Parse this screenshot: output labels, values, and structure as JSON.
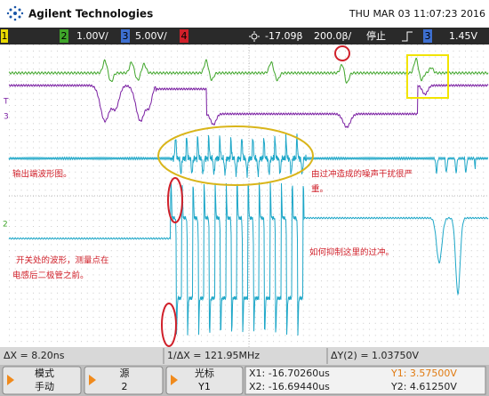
{
  "header": {
    "brand": "Agilent Technologies",
    "datetime": "THU MAR 03 11:07:23 2016"
  },
  "status_bar": {
    "ch1": "1",
    "ch2": "2",
    "ch2_scale": "1.00V/",
    "ch3": "3",
    "ch3_scale": "5.00V/",
    "ch4": "4",
    "delay": "-17.09β",
    "timebase": "200.0β/",
    "run_state": "停止",
    "trigger_source": "3",
    "trigger_level": "1.45V"
  },
  "trace_markers": [
    "T",
    "3",
    "2"
  ],
  "annotations": [
    "输出端波形图。",
    "由过冲造成的噪声干扰很严",
    "重。",
    "开关处的波形，测量点在",
    "电感后二极管之前。",
    "如何抑制这里的过冲。"
  ],
  "measurements": {
    "delta_x": "ΔX = 8.20ns",
    "inverse_delta_x": "1/ΔX = 121.95MHz",
    "delta_y": "ΔY(2) = 1.03750V"
  },
  "softkeys": [
    {
      "label": "模式",
      "value": "手动"
    },
    {
      "label": "源",
      "value": "2"
    },
    {
      "label": "光标",
      "value": "Y1"
    }
  ],
  "cursors": {
    "x1": "X1: -16.70260us",
    "x2": "X2: -16.69440us",
    "y1": "Y1: 3.57500V",
    "y2": "Y2: 4.61250V"
  }
}
